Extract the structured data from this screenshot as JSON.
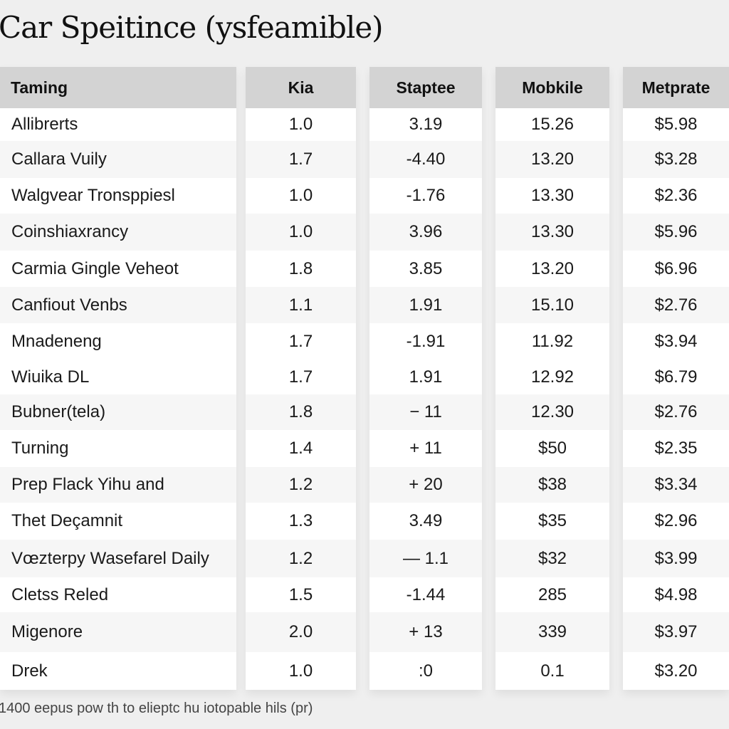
{
  "title": "Car Speitince (ysfeamible)",
  "table": {
    "columns": [
      {
        "label": "Taming"
      },
      {
        "label": "Kia"
      },
      {
        "label": "Staptee"
      },
      {
        "label": "Mobkile"
      },
      {
        "label": "Metprate"
      }
    ],
    "rows": [
      {
        "cells": [
          "Allibrerts",
          "1.0",
          "3.19",
          "15.26",
          "$5.98"
        ]
      },
      {
        "cells": [
          "Callara Vuily",
          "1.7",
          "-4.40",
          "13.20",
          "$3.28"
        ]
      },
      {
        "cells": [
          "Walgvear Tronsppiesl",
          "1.0",
          "-1.76",
          "13.30",
          "$2.36"
        ]
      },
      {
        "cells": [
          "Coinshiaxrancy",
          "1.0",
          "3.96",
          "13.30",
          "$5.96"
        ]
      },
      {
        "cells": [
          "Carmia Gingle Veheot",
          "1.8",
          "3.85",
          "13.20",
          "$6.96"
        ]
      },
      {
        "cells": [
          "Canfiout Venbs",
          "1.1",
          "1.91",
          "15.10",
          "$2.76"
        ]
      },
      {
        "cells": [
          "Mnadeneng",
          "1.7",
          "-1.91",
          "11.92",
          "$3.94"
        ]
      },
      {
        "cells": [
          "Wiuika DL",
          "1.7",
          "1.91",
          "12.92",
          "$6.79"
        ]
      },
      {
        "cells": [
          "Bubner(tela)",
          "1.8",
          "− 11",
          "12.30",
          "$2.76"
        ]
      },
      {
        "cells": [
          "Turning",
          "1.4",
          "+ 11",
          "$50",
          "$2.35"
        ]
      },
      {
        "cells": [
          "Prep Flack Yihu and",
          "1.2",
          "+ 20",
          "$38",
          "$3.34"
        ]
      },
      {
        "cells": [
          "Thet Deçamnit",
          "1.3",
          "3.49",
          "$35",
          "$2.96"
        ]
      },
      {
        "cells": [
          "Vœzterpy Wasefarel Daily",
          "1.2",
          "— 1.1",
          "$32",
          "$3.99"
        ]
      },
      {
        "cells": [
          "Cletss Reled",
          "1.5",
          "-1.44",
          "285",
          "$4.98"
        ]
      },
      {
        "cells": [
          "Migenore",
          "2.0",
          "+ 13",
          "339",
          "$3.97"
        ]
      },
      {
        "cells": [
          "Drek",
          "1.0",
          ":0",
          "0.1",
          "$3.20"
        ]
      }
    ]
  },
  "footer": {
    "note": "1400 eepus pow th to elieptc hu iotopable hils (pr)"
  },
  "colors": {
    "background": "#efefef",
    "header_bg": "#d3d3d3",
    "cell_bg": "#ffffff",
    "alt_cell_bg": "#f6f6f6"
  }
}
